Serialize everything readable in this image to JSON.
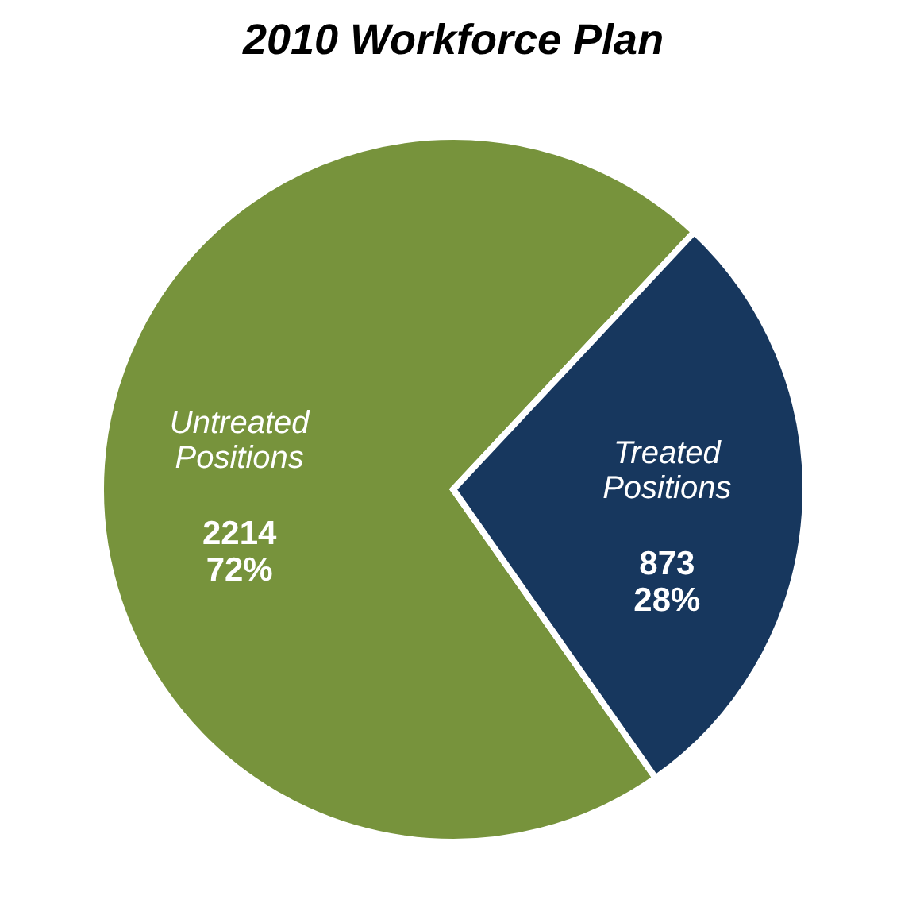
{
  "chart_data": {
    "type": "pie",
    "title": "2010 Workforce Plan",
    "categories": [
      "Untreated Positions",
      "Treated Positions"
    ],
    "values": [
      2214,
      873
    ],
    "colors": [
      "#77933c",
      "#17375e"
    ],
    "data_labels": true,
    "annotations": [
      "72%",
      "28%"
    ],
    "legend": false
  }
}
